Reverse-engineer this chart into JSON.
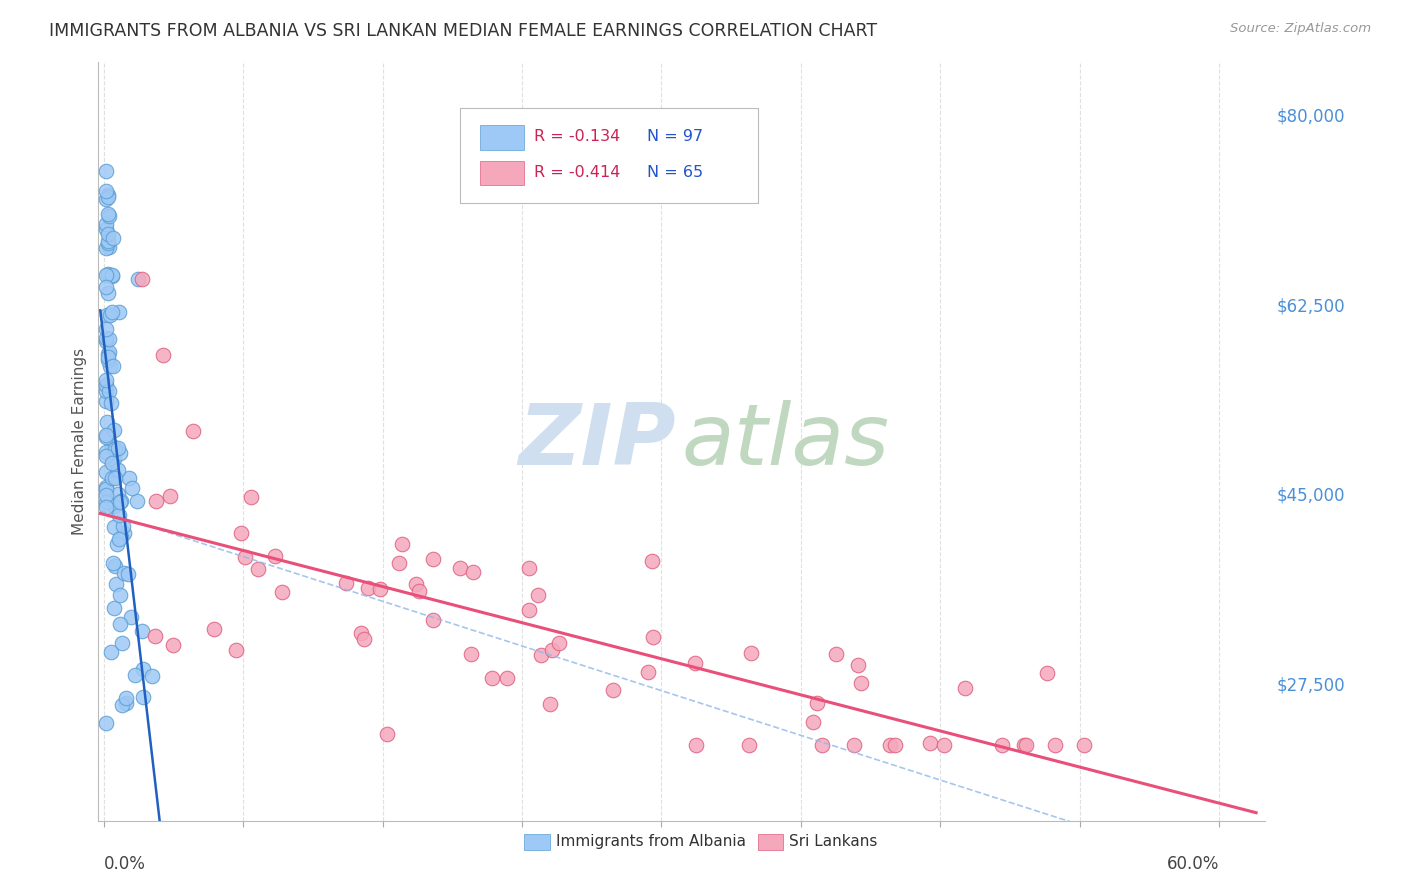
{
  "title": "IMMIGRANTS FROM ALBANIA VS SRI LANKAN MEDIAN FEMALE EARNINGS CORRELATION CHART",
  "source": "Source: ZipAtlas.com",
  "ylabel": "Median Female Earnings",
  "ytick_labels": [
    "$27,500",
    "$45,000",
    "$62,500",
    "$80,000"
  ],
  "ytick_values": [
    27500,
    45000,
    62500,
    80000
  ],
  "y_min": 15000,
  "y_max": 85000,
  "x_min": -0.003,
  "x_max": 0.625,
  "legend_r_albania": "R = -0.134",
  "legend_n_albania": "N = 97",
  "legend_r_sri_lanka": "R = -0.414",
  "legend_n_sri_lanka": "N = 65",
  "albania_color": "#9ec8f5",
  "albania_edge_color": "#5a9fd4",
  "sri_lanka_color": "#f5a8bc",
  "sri_lanka_edge_color": "#e06080",
  "albania_trend_color": "#2060c0",
  "albania_dash_color": "#90b8e8",
  "sri_lanka_trend_color": "#e8507a",
  "watermark_zip_color": "#d0dff0",
  "watermark_atlas_color": "#c0d8c0",
  "background_color": "#ffffff",
  "grid_color": "#dddddd",
  "title_color": "#333333",
  "right_axis_color": "#4a90d9",
  "axis_label_color": "#555555"
}
